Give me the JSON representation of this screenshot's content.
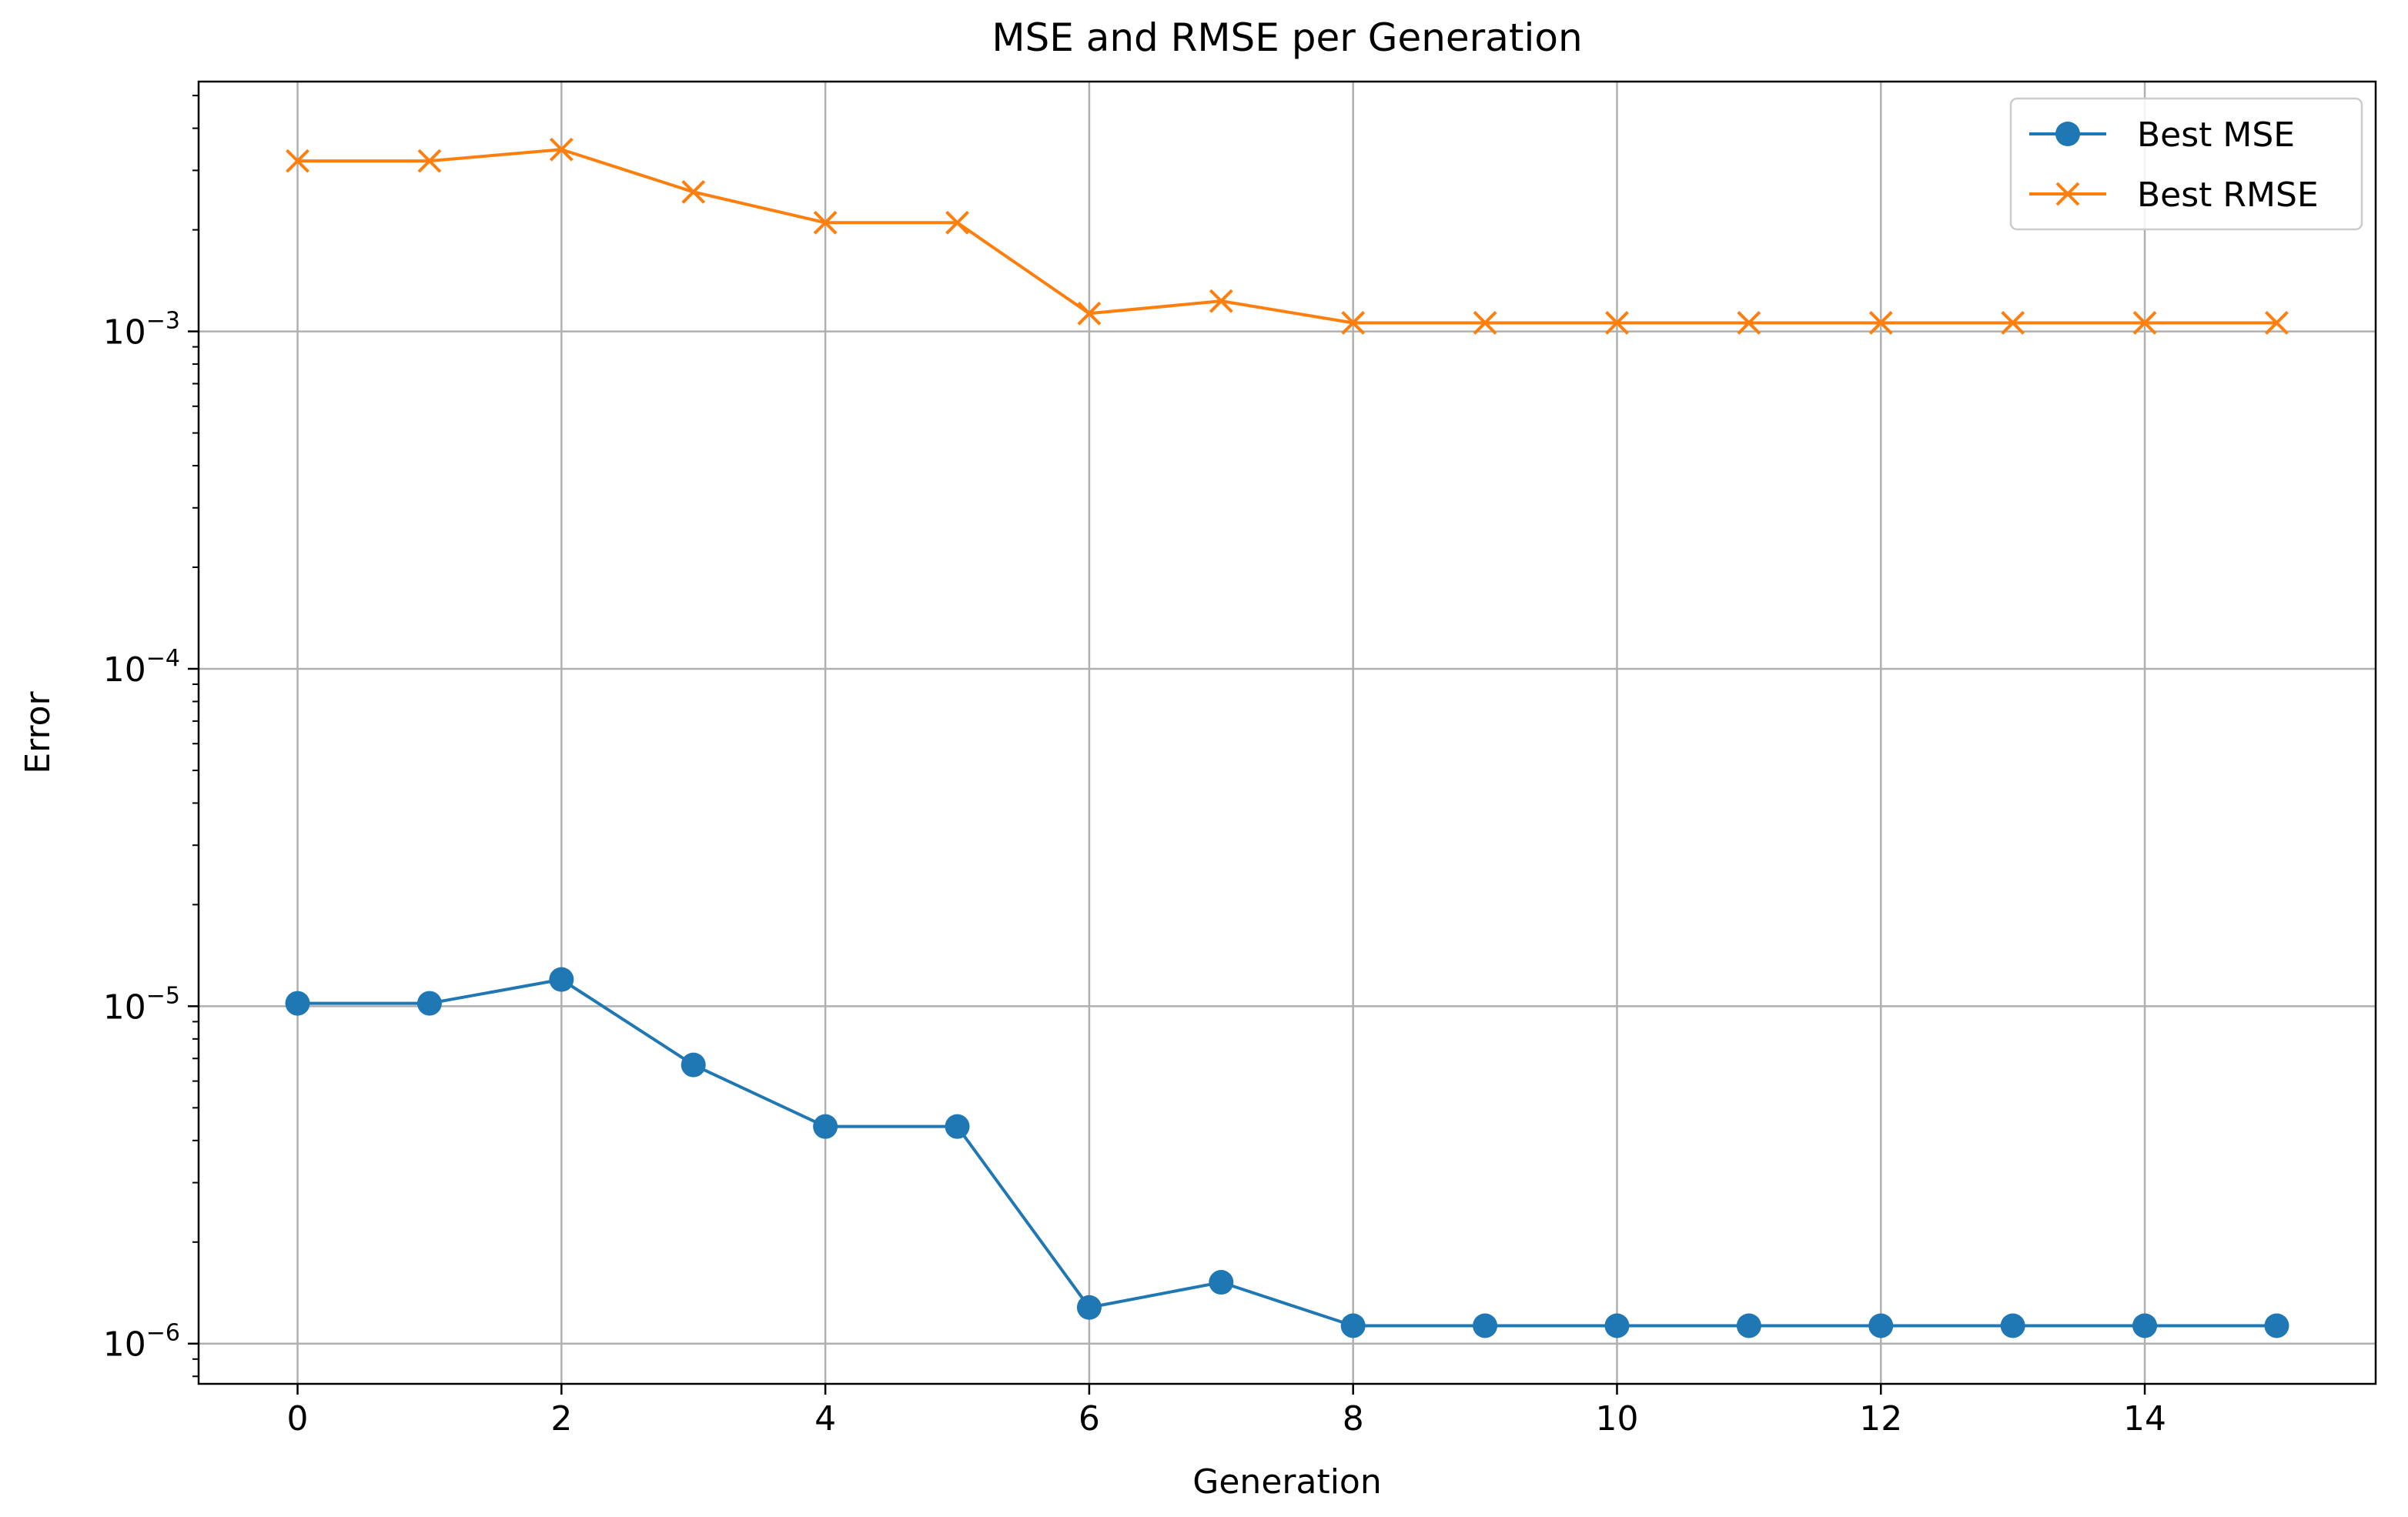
{
  "chart_data": {
    "type": "line",
    "title": "MSE and RMSE per Generation",
    "xlabel": "Generation",
    "ylabel": "Error",
    "yscale": "log",
    "xlim": [
      -0.75,
      15.75
    ],
    "ylim": [
      7.6e-07,
      0.0055
    ],
    "x_ticks": [
      0,
      2,
      4,
      6,
      8,
      10,
      12,
      14
    ],
    "y_ticks": [
      {
        "value": 1e-06,
        "base": "10",
        "exp": "−6"
      },
      {
        "value": 1e-05,
        "base": "10",
        "exp": "−5"
      },
      {
        "value": 0.0001,
        "base": "10",
        "exp": "−4"
      },
      {
        "value": 0.001,
        "base": "10",
        "exp": "−3"
      }
    ],
    "grid": true,
    "legend_position": "upper right",
    "x": [
      0,
      1,
      2,
      3,
      4,
      5,
      6,
      7,
      8,
      9,
      10,
      11,
      12,
      13,
      14,
      15
    ],
    "series": [
      {
        "name": "Best MSE",
        "color": "#1f77b4",
        "marker": "circle",
        "values": [
          1.02e-05,
          1.02e-05,
          1.2e-05,
          6.7e-06,
          4.4e-06,
          4.4e-06,
          1.28e-06,
          1.52e-06,
          1.13e-06,
          1.13e-06,
          1.13e-06,
          1.13e-06,
          1.13e-06,
          1.13e-06,
          1.13e-06,
          1.13e-06
        ]
      },
      {
        "name": "Best RMSE",
        "color": "#ff7f0e",
        "marker": "x",
        "values": [
          0.0032,
          0.0032,
          0.00346,
          0.00259,
          0.0021,
          0.0021,
          0.00113,
          0.00123,
          0.00106,
          0.00106,
          0.00106,
          0.00106,
          0.00106,
          0.00106,
          0.00106,
          0.00106
        ]
      }
    ]
  }
}
